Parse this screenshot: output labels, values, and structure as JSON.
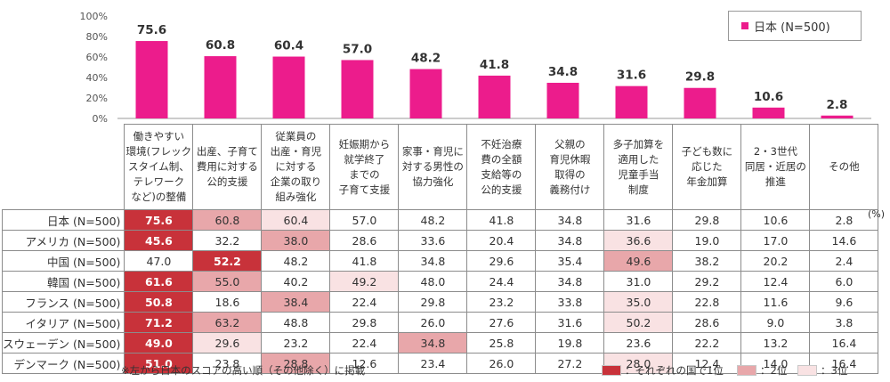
{
  "chart_data": {
    "type": "bar",
    "title": "",
    "xlabel": "",
    "ylabel": "",
    "ylim": [
      0,
      100
    ],
    "yticks": [
      "0%",
      "20%",
      "40%",
      "60%",
      "80%",
      "100%"
    ],
    "categories": [
      "働きやすい環境(フレックスタイム制、テレワークなど)の整備",
      "出産、子育て費用に対する公的支援",
      "従業員の出産・育児に対する企業の取り組み強化",
      "妊娠期から就学終了までの子育て支援",
      "家事・育児に対する男性の協力強化",
      "不妊治療費の全額支給等の公的支援",
      "父親の育児休暇取得の義務付け",
      "多子加算を適用した児童手当制度",
      "子ども数に応じた年金加算",
      "2・3世代同居・近居の推進",
      "その他"
    ],
    "series": [
      {
        "name": "日本 (N=500)",
        "color": "#ec1c8c",
        "values": [
          75.6,
          60.8,
          60.4,
          57.0,
          48.2,
          41.8,
          34.8,
          31.6,
          29.8,
          10.6,
          2.8
        ]
      }
    ],
    "value_labels": [
      "75.6",
      "60.8",
      "60.4",
      "57.0",
      "48.2",
      "41.8",
      "34.8",
      "31.6",
      "29.8",
      "10.6",
      "2.8"
    ],
    "legend": {
      "label": "日本 (N=500)",
      "position": "top-right"
    }
  },
  "table": {
    "headers": [
      [
        "働きやすい",
        "環境(フレック",
        "スタイム制、",
        "テレワーク",
        "など)の整備"
      ],
      [
        "出産、子育て",
        "費用に対する",
        "公的支援"
      ],
      [
        "従業員の",
        "出産・育児",
        "に対する",
        "企業の取り",
        "組み強化"
      ],
      [
        "妊娠期から",
        "就学終了",
        "までの",
        "子育て支援"
      ],
      [
        "家事・育児に",
        "対する男性の",
        "協力強化"
      ],
      [
        "不妊治療",
        "費の全額",
        "支給等の",
        "公的支援"
      ],
      [
        "父親の",
        "育児休暇",
        "取得の",
        "義務付け"
      ],
      [
        "多子加算を",
        "適用した",
        "児童手当",
        "制度"
      ],
      [
        "子ども数に",
        "応じた",
        "年金加算"
      ],
      [
        "2・3世代",
        "同居・近居の",
        "推進"
      ],
      [
        "その他"
      ]
    ],
    "rows": [
      {
        "label": "日本 (N=500)",
        "values": [
          "75.6",
          "60.8",
          "60.4",
          "57.0",
          "48.2",
          "41.8",
          "34.8",
          "31.6",
          "29.8",
          "10.6",
          "2.8"
        ],
        "ranks": [
          1,
          2,
          3,
          0,
          0,
          0,
          0,
          0,
          0,
          0,
          0
        ]
      },
      {
        "label": "アメリカ (N=500)",
        "values": [
          "45.6",
          "32.2",
          "38.0",
          "28.6",
          "33.6",
          "20.4",
          "34.8",
          "36.6",
          "19.0",
          "17.0",
          "14.6"
        ],
        "ranks": [
          1,
          0,
          2,
          0,
          0,
          0,
          0,
          3,
          0,
          0,
          0
        ]
      },
      {
        "label": "中国 (N=500)",
        "values": [
          "47.0",
          "52.2",
          "48.2",
          "41.8",
          "34.8",
          "29.6",
          "35.4",
          "49.6",
          "38.2",
          "20.2",
          "2.4"
        ],
        "ranks": [
          0,
          1,
          0,
          0,
          0,
          0,
          0,
          2,
          0,
          0,
          0
        ]
      },
      {
        "label": "韓国 (N=500)",
        "values": [
          "61.6",
          "55.0",
          "40.2",
          "49.2",
          "48.0",
          "24.4",
          "34.8",
          "31.0",
          "29.2",
          "12.4",
          "6.0"
        ],
        "ranks": [
          1,
          2,
          0,
          3,
          0,
          0,
          0,
          0,
          0,
          0,
          0
        ]
      },
      {
        "label": "フランス (N=500)",
        "values": [
          "50.8",
          "18.6",
          "38.4",
          "22.4",
          "29.8",
          "23.2",
          "33.8",
          "35.0",
          "22.8",
          "11.6",
          "9.6"
        ],
        "ranks": [
          1,
          0,
          2,
          0,
          0,
          0,
          0,
          3,
          0,
          0,
          0
        ]
      },
      {
        "label": "イタリア (N=500)",
        "values": [
          "71.2",
          "63.2",
          "48.8",
          "29.8",
          "26.0",
          "27.6",
          "31.6",
          "50.2",
          "28.6",
          "9.0",
          "3.8"
        ],
        "ranks": [
          1,
          2,
          0,
          0,
          0,
          0,
          0,
          3,
          0,
          0,
          0
        ]
      },
      {
        "label": "スウェーデン (N=500)",
        "values": [
          "49.0",
          "29.6",
          "23.2",
          "22.4",
          "34.8",
          "25.8",
          "19.8",
          "23.6",
          "22.2",
          "13.2",
          "16.4"
        ],
        "ranks": [
          1,
          3,
          0,
          0,
          2,
          0,
          0,
          0,
          0,
          0,
          0
        ]
      },
      {
        "label": "デンマーク (N=500)",
        "values": [
          "51.0",
          "23.8",
          "28.8",
          "12.6",
          "23.4",
          "26.0",
          "27.2",
          "28.0",
          "12.4",
          "14.0",
          "16.4"
        ],
        "ranks": [
          1,
          0,
          2,
          0,
          0,
          0,
          0,
          3,
          0,
          0,
          0
        ]
      }
    ],
    "unit": "(%)"
  },
  "note": "※左から日本のスコアの高い順（その他除く）に掲載",
  "rank_legend": {
    "first": "：それぞれの国で1位",
    "second": "：2位",
    "third": "：3位"
  },
  "colors": {
    "bar": "#ec1c8c",
    "rank1": "#c8323a",
    "rank2": "#e8a7aa",
    "rank3": "#f9e2e3"
  }
}
